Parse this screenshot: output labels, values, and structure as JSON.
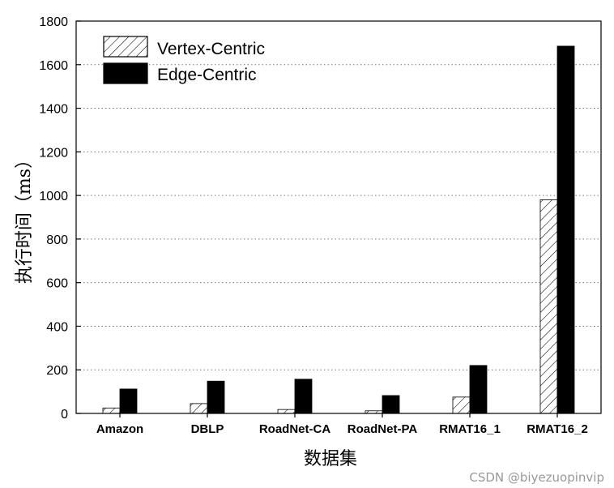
{
  "chart_data": {
    "type": "bar",
    "categories": [
      "Amazon",
      "DBLP",
      "RoadNet-CA",
      "RoadNet-PA",
      "RMAT16_1",
      "RMAT16_2"
    ],
    "series": [
      {
        "name": "Vertex-Centric",
        "values": [
          25,
          45,
          18,
          12,
          75,
          980
        ],
        "style": "hatched"
      },
      {
        "name": "Edge-Centric",
        "values": [
          112,
          148,
          157,
          82,
          220,
          1685
        ],
        "style": "solid-black"
      }
    ],
    "title": "",
    "xlabel": "数据集",
    "ylabel": "执行时间（ms）",
    "ylim": [
      0,
      1800
    ],
    "yticks": [
      0,
      200,
      400,
      600,
      800,
      1000,
      1200,
      1400,
      1600,
      1800
    ],
    "grid": "horizontal-dotted",
    "legend_position": "top-left",
    "colors": {
      "bar": "#000000",
      "hatch": "#000000",
      "background": "#ffffff"
    }
  },
  "watermark": "CSDN @biyezuopinvip"
}
